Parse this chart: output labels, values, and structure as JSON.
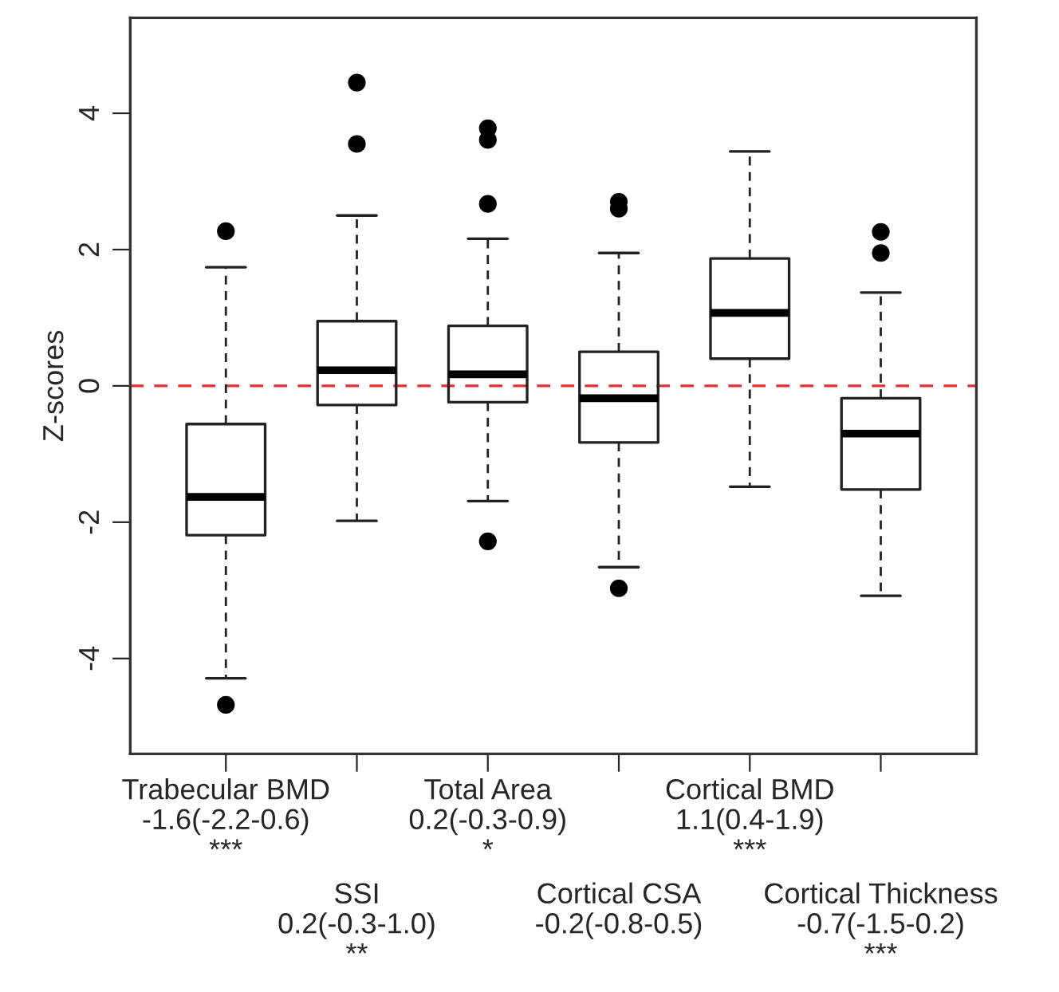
{
  "chart_data": {
    "type": "box",
    "ylabel": "Z-scores",
    "categories": [
      "Trabecular BMD\n-1.6(-2.2-0.6)\n***",
      "SSI\n0.2(-0.3-1.0)\n**",
      "Total Area\n0.2(-0.3-0.9)\n*",
      "Cortical CSA\n-0.2(-0.8-0.5)",
      "Cortical BMD\n1.1(0.4-1.9)\n***",
      "Cortical Thickness\n-0.7(-1.5-0.2)\n***"
    ],
    "boxes": [
      {
        "low": -4.29,
        "q1": -2.19,
        "median": -1.63,
        "q3": -0.56,
        "high": 1.74,
        "outliers": [
          2.27,
          -4.68
        ]
      },
      {
        "low": -1.98,
        "q1": -0.28,
        "median": 0.23,
        "q3": 0.95,
        "high": 2.5,
        "outliers": [
          4.45,
          3.55
        ]
      },
      {
        "low": -1.69,
        "q1": -0.24,
        "median": 0.17,
        "q3": 0.88,
        "high": 2.16,
        "outliers": [
          3.78,
          3.61,
          2.67,
          -2.28
        ]
      },
      {
        "low": -2.66,
        "q1": -0.83,
        "median": -0.18,
        "q3": 0.5,
        "high": 1.95,
        "outliers": [
          2.7,
          2.6,
          -2.97
        ]
      },
      {
        "low": -1.48,
        "q1": 0.4,
        "median": 1.07,
        "q3": 1.87,
        "high": 3.44
      },
      {
        "low": -3.08,
        "q1": -1.52,
        "median": -0.7,
        "q3": -0.18,
        "high": 1.37,
        "outliers": [
          2.26,
          1.95
        ]
      }
    ],
    "ylim": [
      -5.4,
      5.4
    ],
    "yticks": [
      -4,
      -2,
      0,
      2,
      4
    ],
    "ref_lines": [
      {
        "axis": "y",
        "value": 0,
        "label": null,
        "color": "#e03030",
        "line_style": "dashed"
      }
    ],
    "grid": false,
    "legend": false
  }
}
